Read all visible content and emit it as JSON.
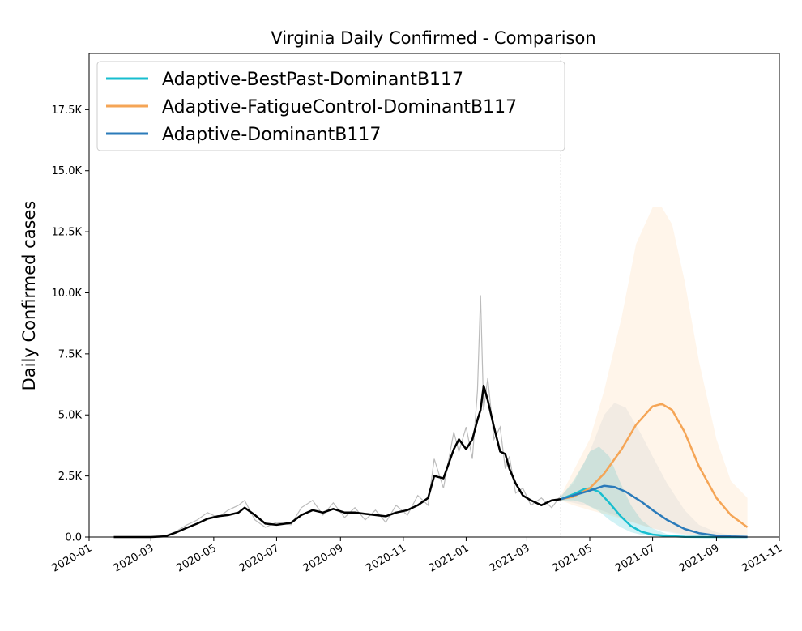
{
  "chart_data": {
    "type": "line",
    "title": "Virginia Daily Confirmed - Comparison",
    "xlabel": "",
    "ylabel": "Daily Confirmed cases",
    "xlim": [
      "2020-01-01",
      "2021-11-01"
    ],
    "ylim": [
      0,
      19800
    ],
    "grid": false,
    "legend_position": "top-left",
    "x_ticks": [
      "2020-01",
      "2020-03",
      "2020-05",
      "2020-07",
      "2020-09",
      "2020-11",
      "2021-01",
      "2021-03",
      "2021-05",
      "2021-07",
      "2021-09",
      "2021-11"
    ],
    "y_ticks": [
      {
        "value": 0,
        "label": "0.0"
      },
      {
        "value": 2500,
        "label": "2.5K"
      },
      {
        "value": 5000,
        "label": "5.0K"
      },
      {
        "value": 7500,
        "label": "7.5K"
      },
      {
        "value": 10000,
        "label": "10.0K"
      },
      {
        "value": 12500,
        "label": "12.5K"
      },
      {
        "value": 15000,
        "label": "15.0K"
      },
      {
        "value": 17500,
        "label": "17.5K"
      }
    ],
    "forecast_start": "2021-04-03",
    "observed": {
      "color": "#000000",
      "raw_color": "#bbbbbb",
      "x": [
        "2020-01-25",
        "2020-02-15",
        "2020-03-01",
        "2020-03-15",
        "2020-03-25",
        "2020-04-05",
        "2020-04-15",
        "2020-04-25",
        "2020-05-05",
        "2020-05-15",
        "2020-05-25",
        "2020-05-31",
        "2020-06-10",
        "2020-06-20",
        "2020-07-01",
        "2020-07-15",
        "2020-07-25",
        "2020-08-05",
        "2020-08-15",
        "2020-08-25",
        "2020-09-05",
        "2020-09-15",
        "2020-09-25",
        "2020-10-05",
        "2020-10-15",
        "2020-10-25",
        "2020-11-05",
        "2020-11-15",
        "2020-11-25",
        "2020-12-01",
        "2020-12-10",
        "2020-12-20",
        "2020-12-25",
        "2021-01-01",
        "2021-01-07",
        "2021-01-12",
        "2021-01-15",
        "2021-01-18",
        "2021-01-22",
        "2021-01-28",
        "2021-02-03",
        "2021-02-08",
        "2021-02-12",
        "2021-02-18",
        "2021-02-25",
        "2021-03-05",
        "2021-03-15",
        "2021-03-25",
        "2021-04-03"
      ],
      "y": [
        0,
        0,
        0,
        30,
        180,
        380,
        550,
        750,
        850,
        900,
        1000,
        1200,
        900,
        550,
        500,
        580,
        900,
        1100,
        1000,
        1150,
        1000,
        1000,
        950,
        900,
        850,
        1000,
        1100,
        1300,
        1600,
        2500,
        2400,
        3600,
        4000,
        3600,
        4000,
        4800,
        5200,
        6200,
        5600,
        4500,
        3500,
        3400,
        2800,
        2200,
        1700,
        1500,
        1300,
        1500,
        1550
      ],
      "raw_y": [
        0,
        0,
        0,
        50,
        220,
        500,
        700,
        1000,
        800,
        1100,
        1300,
        1500,
        700,
        400,
        600,
        500,
        1200,
        1500,
        900,
        1400,
        800,
        1200,
        700,
        1100,
        600,
        1300,
        900,
        1700,
        1300,
        3200,
        2000,
        4300,
        3500,
        4500,
        3200,
        6000,
        9900,
        5200,
        6500,
        4000,
        4500,
        2800,
        3300,
        1800,
        2000,
        1300,
        1600,
        1200,
        1700
      ]
    },
    "series": [
      {
        "name": "Adaptive-BestPast-DominantB117",
        "color": "#17becf",
        "x": [
          "2021-04-03",
          "2021-04-15",
          "2021-04-25",
          "2021-05-01",
          "2021-05-10",
          "2021-05-20",
          "2021-05-31",
          "2021-06-10",
          "2021-06-20",
          "2021-07-01",
          "2021-07-15",
          "2021-08-01",
          "2021-08-15",
          "2021-09-01",
          "2021-09-15",
          "2021-10-01"
        ],
        "y": [
          1550,
          1750,
          1950,
          2000,
          1850,
          1400,
          850,
          450,
          220,
          100,
          40,
          10,
          3,
          1,
          0,
          0
        ],
        "band_lower": [
          1500,
          1500,
          1400,
          1250,
          1050,
          700,
          400,
          200,
          90,
          40,
          10,
          3,
          1,
          0,
          0,
          0
        ],
        "band_upper": [
          1650,
          2300,
          3000,
          3500,
          3700,
          3300,
          2200,
          1300,
          700,
          350,
          120,
          30,
          10,
          3,
          1,
          0
        ]
      },
      {
        "name": "Adaptive-FatigueControl-DominantB117",
        "color": "#f5a556",
        "x": [
          "2021-04-03",
          "2021-04-15",
          "2021-05-01",
          "2021-05-15",
          "2021-06-01",
          "2021-06-15",
          "2021-07-01",
          "2021-07-10",
          "2021-07-20",
          "2021-08-01",
          "2021-08-15",
          "2021-09-01",
          "2021-09-15",
          "2021-10-01"
        ],
        "y": [
          1550,
          1650,
          2000,
          2600,
          3600,
          4600,
          5350,
          5450,
          5200,
          4300,
          2900,
          1600,
          900,
          400
        ],
        "band_lower": [
          1500,
          1300,
          1100,
          950,
          750,
          550,
          350,
          280,
          200,
          120,
          60,
          20,
          10,
          5
        ],
        "band_upper": [
          1700,
          2700,
          4000,
          6000,
          9000,
          12000,
          13500,
          13500,
          12800,
          10500,
          7200,
          4000,
          2300,
          1600
        ]
      },
      {
        "name": "Adaptive-DominantB117",
        "color": "#2b7bba",
        "x": [
          "2021-04-03",
          "2021-04-15",
          "2021-05-01",
          "2021-05-15",
          "2021-05-25",
          "2021-06-05",
          "2021-06-20",
          "2021-07-01",
          "2021-07-15",
          "2021-08-01",
          "2021-08-15",
          "2021-09-01",
          "2021-09-15",
          "2021-10-01"
        ],
        "y": [
          1550,
          1700,
          1900,
          2100,
          2050,
          1850,
          1450,
          1100,
          700,
          330,
          160,
          60,
          25,
          10
        ],
        "band_lower": [
          1500,
          1400,
          1250,
          1050,
          900,
          700,
          500,
          350,
          200,
          80,
          30,
          10,
          5,
          2
        ],
        "band_upper": [
          1700,
          2200,
          3500,
          5000,
          5500,
          5300,
          4200,
          3300,
          2200,
          1100,
          500,
          200,
          70,
          20
        ]
      }
    ]
  }
}
